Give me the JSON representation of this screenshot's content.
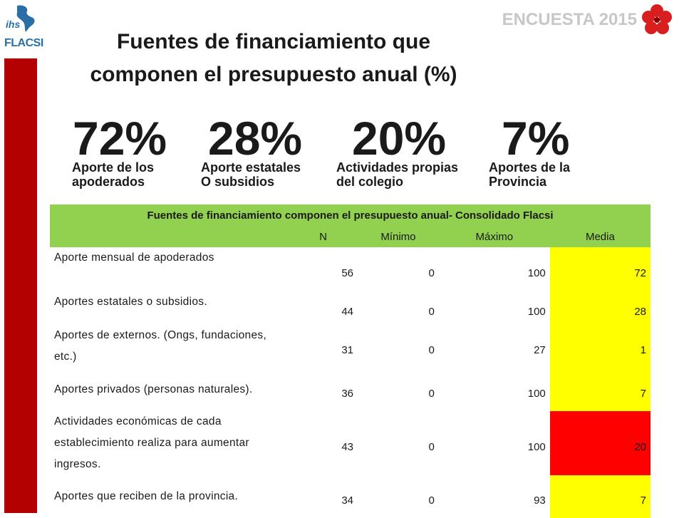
{
  "header": {
    "logo_top": "ihs",
    "logo_bottom": "FLACSI",
    "survey_label": "ENCUESTA 2015"
  },
  "title": "Fuentes de financiamiento que componen el presupuesto anual (%)",
  "title_line1": "Fuentes de financiamiento que",
  "title_line2": "componen el presupuesto anual (%)",
  "highlights": [
    {
      "value": "72%",
      "line1": "Aporte de los",
      "line2": "apoderados"
    },
    {
      "value": "28%",
      "line1": "Aporte estatales",
      "line2": "O subsidios"
    },
    {
      "value": "20%",
      "line1": "Actividades propias",
      "line2": "del colegio"
    },
    {
      "value": "7%",
      "line1": "Aportes de la",
      "line2": "Provincia"
    }
  ],
  "table": {
    "caption": "Fuentes de financiamiento  componen  el presupuesto  anual-  Consolidado  Flacsi",
    "columns": [
      "N",
      "Mínimo",
      "Máximo",
      "Media"
    ],
    "rows": [
      {
        "label": "Aporte  mensual  de apoderados",
        "n": "56",
        "min": "0",
        "max": "100",
        "media": "72",
        "highlight": "yellow"
      },
      {
        "label": "Aportes  estatales  o subsidios.",
        "n": "44",
        "min": "0",
        "max": "100",
        "media": "28",
        "highlight": "yellow"
      },
      {
        "label": "Aportes  de  externos.  (Ongs,  fundaciones,  etc.)",
        "n": "31",
        "min": "0",
        "max": "27",
        "media": "1",
        "highlight": "yellow"
      },
      {
        "label": "Aportes  privados  (personas  naturales).",
        "n": "36",
        "min": "0",
        "max": "100",
        "media": "7",
        "highlight": "yellow"
      },
      {
        "label": "Actividades  económicas  de cada  establecimiento  realiza  para  aumentar  ingresos.",
        "n": "43",
        "min": "0",
        "max": "100",
        "media": "20",
        "highlight": "red"
      },
      {
        "label": "Aportes  que  reciben  de  la  provincia.",
        "n": "34",
        "min": "0",
        "max": "93",
        "media": "7",
        "highlight": "yellow"
      }
    ]
  },
  "colors": {
    "accent_red": "#b30000",
    "header_green": "#92d050",
    "cell_yellow": "#ffff00",
    "cell_red": "#ff0000"
  }
}
